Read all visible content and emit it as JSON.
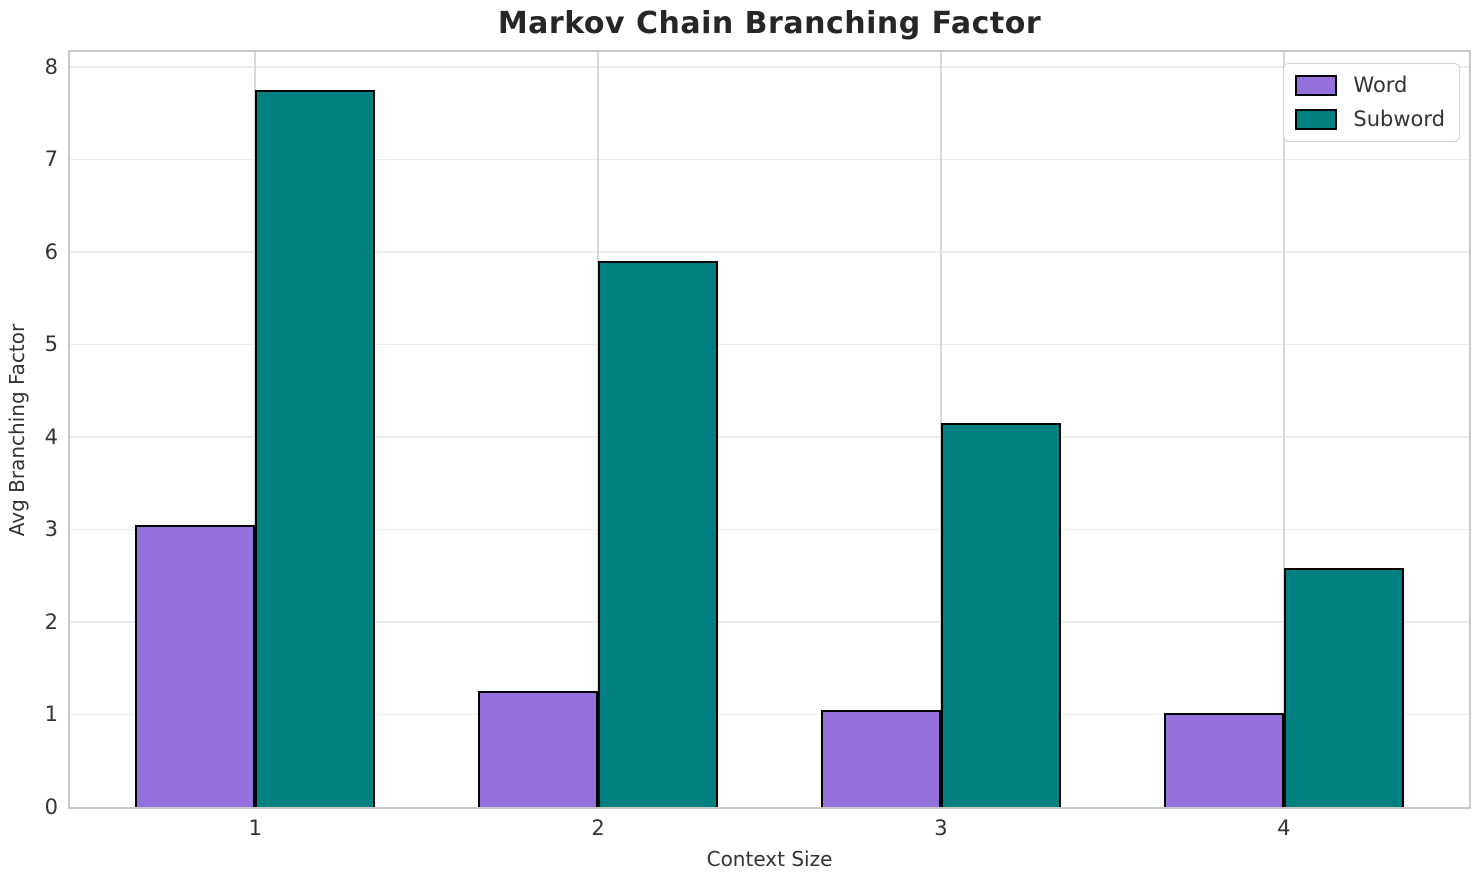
{
  "chart_data": {
    "type": "bar",
    "title": "Markov Chain Branching Factor",
    "xlabel": "Context Size",
    "ylabel": "Avg Branching Factor",
    "categories": [
      "1",
      "2",
      "3",
      "4"
    ],
    "series": [
      {
        "name": "Word",
        "color": "#9370DB",
        "values": [
          3.05,
          1.25,
          1.05,
          1.02
        ]
      },
      {
        "name": "Subword",
        "color": "#008080",
        "values": [
          7.75,
          5.9,
          4.15,
          2.58
        ]
      }
    ],
    "ylim": [
      0,
      8.16
    ],
    "yticks": [
      0,
      1,
      2,
      3,
      4,
      5,
      6,
      7,
      8
    ],
    "grid": true,
    "legend_position": "upper right",
    "bar_edge_color": "#000000",
    "bar_width_frac": 0.35,
    "category_pad": 0.54
  }
}
